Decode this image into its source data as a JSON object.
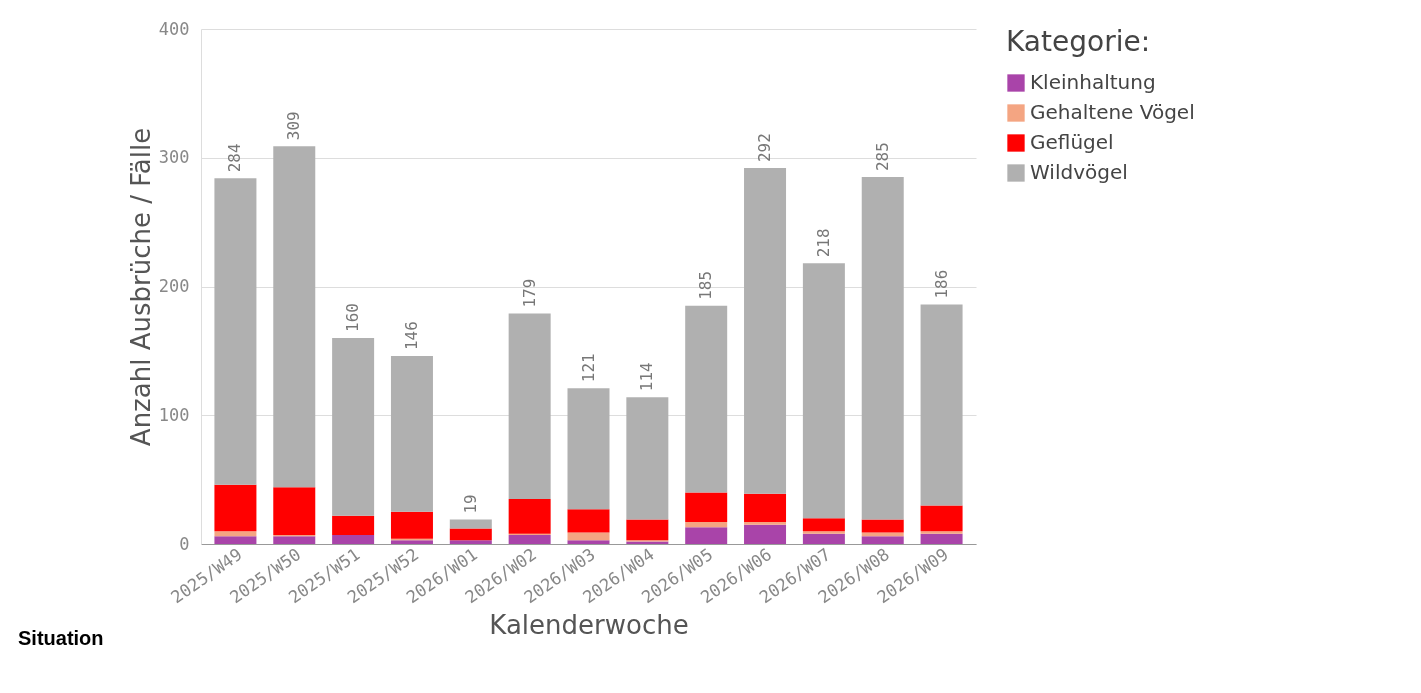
{
  "chart_data": {
    "type": "bar",
    "stacked": true,
    "xlabel": "Kalenderwoche",
    "ylabel": "Anzahl Ausbrüche / Fälle",
    "legend_title": "Kategorie:",
    "legend": "right",
    "grid": "y",
    "categories": [
      "2025/W49",
      "2025/W50",
      "2025/W51",
      "2025/W52",
      "2026/W01",
      "2026/W02",
      "2026/W03",
      "2026/W04",
      "2026/W05",
      "2026/W06",
      "2026/W07",
      "2026/W08",
      "2026/W09"
    ],
    "series": [
      {
        "name": "Kleinhaltung",
        "color": "#a944a9",
        "values": [
          6,
          6,
          7,
          3,
          3,
          7,
          3,
          2,
          13,
          15,
          8,
          6,
          8
        ]
      },
      {
        "name": "Gehaltene Vögel",
        "color": "#f4a582",
        "values": [
          4,
          1,
          0,
          1,
          0,
          1,
          6,
          1,
          4,
          2,
          2,
          3,
          2
        ]
      },
      {
        "name": "Geflügel",
        "color": "#ff0000",
        "values": [
          36,
          37,
          15,
          21,
          9,
          27,
          18,
          16,
          23,
          22,
          10,
          10,
          20
        ]
      },
      {
        "name": "Wildvögel",
        "color": "#b0b0b0",
        "values": [
          238,
          265,
          138,
          121,
          7,
          144,
          94,
          95,
          145,
          253,
          198,
          266,
          156
        ]
      }
    ],
    "totals": [
      "284",
      "309",
      "160",
      "146",
      "19",
      "179",
      "121",
      "114",
      "185",
      "292",
      "218",
      "285",
      "186"
    ],
    "ylim": [
      0,
      400
    ],
    "yticks": [
      0,
      100,
      200,
      300,
      400
    ],
    "annotations": [
      "Situation"
    ]
  }
}
